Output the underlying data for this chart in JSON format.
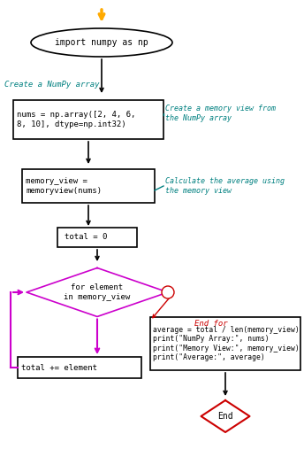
{
  "bg_color": "#ffffff",
  "arrow_color": "#000000",
  "orange_color": "#ffaa00",
  "loop_color": "#cc00cc",
  "end_color": "#cc0000",
  "teal_color": "#008080",
  "oval_text": "import numpy as np",
  "comment1_text": "Create a NumPy array",
  "box1_text": "nums = np.array([2, 4, 6,\n8, 10], dtype=np.int32)",
  "comment2_text": "Create a memory view from\nthe NumPy array",
  "box2_text": "memory_view =\nmemoryview(nums)",
  "comment3_text": "Calculate the average using\nthe memory view",
  "box3_text": "total = 0",
  "diamond_text": "for element\nin memory_view",
  "box4_text": "total += element",
  "box5_text": "average = total / len(memory_view)\nprint(\"NumPy Array:\", nums)\nprint(\"Memory View:\", memory_view)\nprint(\"Average:\", average)",
  "end_text": "End",
  "end_for_text": "End for"
}
